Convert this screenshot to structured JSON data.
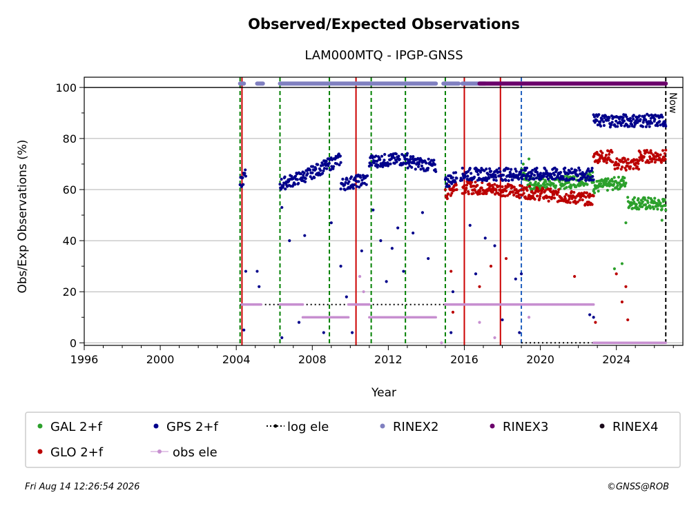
{
  "chart_data": {
    "type": "scatter",
    "title": "Observed/Expected Observations",
    "subtitle": "LAM000MTQ - IPGP-GNSS",
    "xlabel": "Year",
    "ylabel": "Obs/Exp Observations (%)",
    "xlim": [
      1996.0,
      2027.5
    ],
    "ylim": [
      -1,
      104
    ],
    "x_ticks": [
      1996,
      2000,
      2004,
      2008,
      2012,
      2016,
      2020,
      2024
    ],
    "y_ticks": [
      0,
      20,
      40,
      60,
      80,
      100
    ],
    "grid": "horizontal",
    "now_label": "Now",
    "now_year": 2026.6,
    "vertical_lines": [
      {
        "x": 2004.2,
        "color": "#008000",
        "style": "dashed"
      },
      {
        "x": 2004.3,
        "color": "#cc0000",
        "style": "solid"
      },
      {
        "x": 2006.3,
        "color": "#008000",
        "style": "dashed"
      },
      {
        "x": 2008.9,
        "color": "#008000",
        "style": "dashed"
      },
      {
        "x": 2010.3,
        "color": "#cc0000",
        "style": "solid"
      },
      {
        "x": 2011.1,
        "color": "#008000",
        "style": "dashed"
      },
      {
        "x": 2012.9,
        "color": "#008000",
        "style": "dashed"
      },
      {
        "x": 2015.0,
        "color": "#008000",
        "style": "dashed"
      },
      {
        "x": 2016.0,
        "color": "#cc0000",
        "style": "solid"
      },
      {
        "x": 2017.9,
        "color": "#cc0000",
        "style": "solid"
      },
      {
        "x": 2019.0,
        "color": "#1f5fbf",
        "style": "dashed"
      },
      {
        "x": 2026.6,
        "color": "#000000",
        "style": "dashed"
      }
    ],
    "series": [
      {
        "name": "GPS 2+f",
        "color": "#00008b",
        "segments": [
          {
            "x": [
              2004.2,
              2004.5
            ],
            "y": [
              62,
              66
            ]
          },
          {
            "x": [
              2006.3,
              2007.5
            ],
            "y": [
              62,
              65
            ]
          },
          {
            "x": [
              2007.5,
              2009.5
            ],
            "y": [
              65,
              72
            ]
          },
          {
            "x": [
              2009.5,
              2010.9
            ],
            "y": [
              62,
              64
            ]
          },
          {
            "x": [
              2011.0,
              2013.0
            ],
            "y": [
              71,
              72
            ]
          },
          {
            "x": [
              2013.0,
              2014.5
            ],
            "y": [
              71,
              69
            ]
          },
          {
            "x": [
              2015.0,
              2015.6
            ],
            "y": [
              63,
              65
            ]
          },
          {
            "x": [
              2015.8,
              2022.8
            ],
            "y": [
              66,
              66
            ]
          },
          {
            "x": [
              2022.8,
              2026.6
            ],
            "y": [
              87,
              87
            ]
          }
        ],
        "outliers": [
          {
            "x": 2004.4,
            "y": 5
          },
          {
            "x": 2004.5,
            "y": 28
          },
          {
            "x": 2005.1,
            "y": 28
          },
          {
            "x": 2005.2,
            "y": 22
          },
          {
            "x": 2006.4,
            "y": 53
          },
          {
            "x": 2006.4,
            "y": 2
          },
          {
            "x": 2006.8,
            "y": 40
          },
          {
            "x": 2007.3,
            "y": 8
          },
          {
            "x": 2007.6,
            "y": 42
          },
          {
            "x": 2008.6,
            "y": 4
          },
          {
            "x": 2009.0,
            "y": 47
          },
          {
            "x": 2009.5,
            "y": 30
          },
          {
            "x": 2009.8,
            "y": 18
          },
          {
            "x": 2010.1,
            "y": 4
          },
          {
            "x": 2010.6,
            "y": 36
          },
          {
            "x": 2011.2,
            "y": 52
          },
          {
            "x": 2011.6,
            "y": 40
          },
          {
            "x": 2011.9,
            "y": 24
          },
          {
            "x": 2012.2,
            "y": 37
          },
          {
            "x": 2012.5,
            "y": 45
          },
          {
            "x": 2012.8,
            "y": 28
          },
          {
            "x": 2013.3,
            "y": 43
          },
          {
            "x": 2013.8,
            "y": 51
          },
          {
            "x": 2014.1,
            "y": 33
          },
          {
            "x": 2015.3,
            "y": 4
          },
          {
            "x": 2015.4,
            "y": 20
          },
          {
            "x": 2016.3,
            "y": 46
          },
          {
            "x": 2016.6,
            "y": 27
          },
          {
            "x": 2017.1,
            "y": 41
          },
          {
            "x": 2017.6,
            "y": 38
          },
          {
            "x": 2018.0,
            "y": 9
          },
          {
            "x": 2018.7,
            "y": 25
          },
          {
            "x": 2018.9,
            "y": 4
          },
          {
            "x": 2019.0,
            "y": 27
          },
          {
            "x": 2022.6,
            "y": 11
          },
          {
            "x": 2022.8,
            "y": 10
          }
        ]
      },
      {
        "name": "GLO 2+f",
        "color": "#bb0000",
        "segments": [
          {
            "x": [
              2015.0,
              2015.6
            ],
            "y": [
              58,
              62
            ]
          },
          {
            "x": [
              2015.9,
              2018.0
            ],
            "y": [
              61,
              60
            ]
          },
          {
            "x": [
              2018.0,
              2022.8
            ],
            "y": [
              60,
              56
            ]
          },
          {
            "x": [
              2022.8,
              2023.8
            ],
            "y": [
              73,
              73
            ]
          },
          {
            "x": [
              2023.9,
              2025.2
            ],
            "y": [
              70,
              70
            ]
          },
          {
            "x": [
              2025.2,
              2026.6
            ],
            "y": [
              73,
              73
            ]
          }
        ],
        "outliers": [
          {
            "x": 2015.3,
            "y": 28
          },
          {
            "x": 2015.4,
            "y": 12
          },
          {
            "x": 2016.8,
            "y": 22
          },
          {
            "x": 2017.4,
            "y": 30
          },
          {
            "x": 2018.2,
            "y": 33
          },
          {
            "x": 2021.8,
            "y": 26
          },
          {
            "x": 2022.9,
            "y": 8
          },
          {
            "x": 2024.0,
            "y": 27
          },
          {
            "x": 2024.3,
            "y": 16
          },
          {
            "x": 2024.5,
            "y": 22
          },
          {
            "x": 2024.6,
            "y": 9
          }
        ]
      },
      {
        "name": "GAL 2+f",
        "color": "#2ca02c",
        "segments": [
          {
            "x": [
              2019.0,
              2019.5
            ],
            "y": [
              68,
              62
            ]
          },
          {
            "x": [
              2019.5,
              2021.6
            ],
            "y": [
              62,
              63
            ]
          },
          {
            "x": [
              2021.6,
              2022.8
            ],
            "y": [
              63,
              65
            ]
          },
          {
            "x": [
              2022.8,
              2024.5
            ],
            "y": [
              61,
              63
            ]
          },
          {
            "x": [
              2024.6,
              2026.6
            ],
            "y": [
              55,
              54
            ]
          }
        ],
        "outliers": [
          {
            "x": 2019.1,
            "y": 70
          },
          {
            "x": 2019.4,
            "y": 72
          },
          {
            "x": 2023.9,
            "y": 29
          },
          {
            "x": 2024.3,
            "y": 31
          },
          {
            "x": 2024.5,
            "y": 47
          },
          {
            "x": 2026.4,
            "y": 48
          }
        ]
      },
      {
        "name": "obs ele",
        "color": "#c78fd0",
        "segments": [
          {
            "x": [
              2004.3,
              2005.3
            ],
            "y": [
              15,
              15
            ]
          },
          {
            "x": [
              2006.3,
              2007.5
            ],
            "y": [
              15,
              15
            ]
          },
          {
            "x": [
              2007.5,
              2009.9
            ],
            "y": [
              10,
              10
            ]
          },
          {
            "x": [
              2009.9,
              2011.0
            ],
            "y": [
              15,
              15
            ]
          },
          {
            "x": [
              2011.0,
              2014.5
            ],
            "y": [
              10,
              10
            ]
          },
          {
            "x": [
              2015.0,
              2015.8
            ],
            "y": [
              15,
              15
            ]
          },
          {
            "x": [
              2015.8,
              2022.8
            ],
            "y": [
              15,
              15
            ]
          },
          {
            "x": [
              2022.8,
              2026.6
            ],
            "y": [
              0,
              0
            ]
          }
        ],
        "outliers": [
          {
            "x": 2010.5,
            "y": 26
          },
          {
            "x": 2010.7,
            "y": 20
          },
          {
            "x": 2014.8,
            "y": 0
          },
          {
            "x": 2016.8,
            "y": 8
          },
          {
            "x": 2017.6,
            "y": 2
          },
          {
            "x": 2019.4,
            "y": 10
          }
        ]
      }
    ],
    "log_ele": {
      "name": "log ele",
      "color": "#000000",
      "segments": [
        {
          "x": [
            2004.2,
            2019.0
          ],
          "y": [
            15,
            15
          ]
        },
        {
          "x": [
            2019.0,
            2026.6
          ],
          "y": [
            0,
            0
          ]
        }
      ]
    },
    "rinex": [
      {
        "name": "RINEX2",
        "color": "#8080c0",
        "y": 101.5,
        "ranges": [
          [
            2004.2,
            2004.4
          ],
          [
            2005.1,
            2005.4
          ],
          [
            2006.3,
            2014.5
          ],
          [
            2014.9,
            2015.7
          ],
          [
            2015.9,
            2017.1
          ]
        ]
      },
      {
        "name": "RINEX3",
        "color": "#6b006b",
        "y": 101.5,
        "ranges": [
          [
            2016.8,
            2026.6
          ]
        ]
      },
      {
        "name": "RINEX4",
        "color": "#1a0a1a",
        "y": 101.5,
        "ranges": []
      }
    ],
    "legend_placement": "bottom",
    "legend": [
      {
        "label": "GAL 2+f",
        "color": "#2ca02c",
        "marker": "dot"
      },
      {
        "label": "GPS 2+f",
        "color": "#00008b",
        "marker": "dot"
      },
      {
        "label": "log ele",
        "color": "#000000",
        "marker": "dotted-line"
      },
      {
        "label": "RINEX2",
        "color": "#8080c0",
        "marker": "dot"
      },
      {
        "label": "RINEX3",
        "color": "#6b006b",
        "marker": "dot"
      },
      {
        "label": "RINEX4",
        "color": "#1a0a1a",
        "marker": "dot"
      },
      {
        "label": "GLO 2+f",
        "color": "#bb0000",
        "marker": "dot"
      },
      {
        "label": "obs ele",
        "color": "#c78fd0",
        "marker": "line-dot"
      }
    ]
  },
  "footer": {
    "timestamp": "Fri Aug 14 12:26:54 2026",
    "credit": "©GNSS@ROB"
  }
}
